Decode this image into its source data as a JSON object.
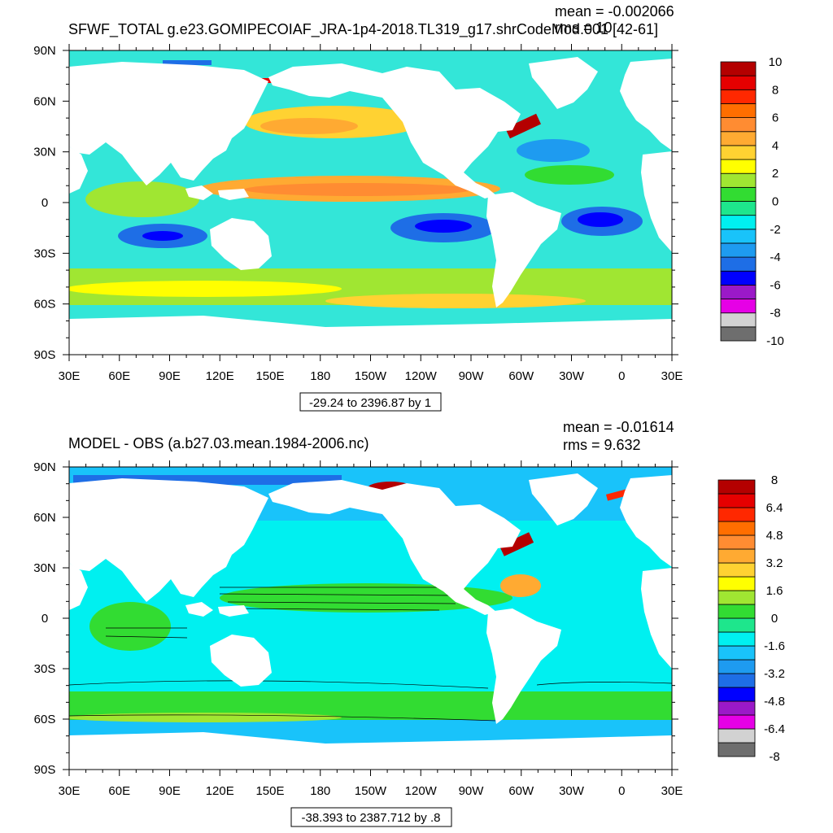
{
  "colors": {
    "top_scale": [
      "#6e6e6e",
      "#d2d2d2",
      "#e600e6",
      "#9b19c8",
      "#0000ff",
      "#1e6ee6",
      "#1e9bf0",
      "#19c3fa",
      "#00f0f0",
      "#1ee68c",
      "#32dc32",
      "#a0e632",
      "#ffff00",
      "#ffd232",
      "#ffaa32",
      "#ff8c32",
      "#ff6e00",
      "#ff2800",
      "#e60000",
      "#b40000"
    ],
    "bottom_scale": [
      "#6e6e6e",
      "#d2d2d2",
      "#e600e6",
      "#9b19c8",
      "#0000ff",
      "#1e6ee6",
      "#1e9bf0",
      "#19c3fa",
      "#00f0f0",
      "#1ee68c",
      "#32dc32",
      "#a0e632",
      "#ffff00",
      "#ffd232",
      "#ffaa32",
      "#ff8c32",
      "#ff6e00",
      "#ff2800",
      "#e60000",
      "#b40000"
    ],
    "land": "#ffffff",
    "ocean_base": "#33e6d8",
    "southern_band": "#a0e632"
  },
  "chart_data": [
    {
      "type": "heatmap",
      "title": "SFWF_TOTAL g.e23.GOMIPECOIAF_JRA-1p4-2018.TL319_g17.shrCodeMod.001 [42-61]",
      "stats": [
        "mean = -0.002066",
        "rms = 10"
      ],
      "x_ticks": [
        "30E",
        "60E",
        "90E",
        "120E",
        "150E",
        "180",
        "150W",
        "120W",
        "90W",
        "60W",
        "30W",
        "0",
        "30E"
      ],
      "y_ticks": [
        "90N",
        "60N",
        "30N",
        "0",
        "30S",
        "60S",
        "90S"
      ],
      "colorbar_labels": [
        "10",
        "8",
        "6",
        "4",
        "2",
        "0",
        "-2",
        "-4",
        "-6",
        "-8",
        "-10"
      ],
      "contour_info": "-29.24 to 2396.87 by 1"
    },
    {
      "type": "heatmap",
      "title": "MODEL - OBS (a.b27.03.mean.1984-2006.nc)",
      "stats": [
        "mean = -0.01614",
        "rms = 9.632"
      ],
      "x_ticks": [
        "30E",
        "60E",
        "90E",
        "120E",
        "150E",
        "180",
        "150W",
        "120W",
        "90W",
        "60W",
        "30W",
        "0",
        "30E"
      ],
      "y_ticks": [
        "90N",
        "60N",
        "30N",
        "0",
        "30S",
        "60S",
        "90S"
      ],
      "colorbar_labels": [
        "8",
        "6.4",
        "4.8",
        "3.2",
        "1.6",
        "0",
        "-1.6",
        "-3.2",
        "-4.8",
        "-6.4",
        "-8"
      ],
      "contour_info": "-38.393 to 2387.712 by .8"
    }
  ]
}
